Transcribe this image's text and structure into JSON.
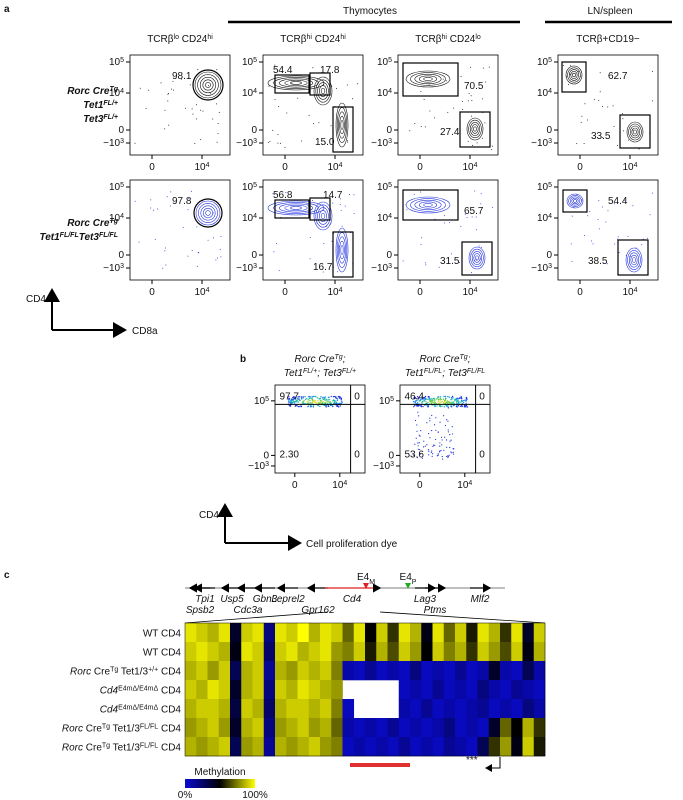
{
  "panel_a": {
    "letter": "a",
    "groups": [
      "Thymocytes",
      "LN/spleen"
    ],
    "columns": [
      [
        {
          "t": "TCRβ"
        },
        {
          "t": "lo",
          "sup": true
        },
        {
          "t": " CD24"
        },
        {
          "t": "hi",
          "sup": true
        }
      ],
      [
        {
          "t": "TCRβ"
        },
        {
          "t": "hi",
          "sup": true
        },
        {
          "t": " CD24"
        },
        {
          "t": "hi",
          "sup": true
        }
      ],
      [
        {
          "t": "TCRβ"
        },
        {
          "t": "hi",
          "sup": true
        },
        {
          "t": " CD24"
        },
        {
          "t": "lo",
          "sup": true
        }
      ],
      [
        {
          "t": "TCRβ+CD19−"
        }
      ]
    ],
    "rows": [
      {
        "label": [
          [
            {
              "t": "Rorc Cre"
            },
            {
              "t": "Tg",
              "sup": true
            }
          ],
          [
            {
              "t": "Tet1"
            },
            {
              "t": "FL/+",
              "sup": true
            }
          ],
          [
            {
              "t": "Tet3"
            },
            {
              "t": "FL/+",
              "sup": true
            }
          ]
        ],
        "gates": [
          [
            "98.1"
          ],
          [
            "54.4",
            "17.8",
            "15.0"
          ],
          [
            "70.5",
            "27.4"
          ],
          [
            "62.7",
            "33.5"
          ]
        ]
      },
      {
        "label": [
          [
            {
              "t": "Rorc Cre"
            },
            {
              "t": "Tg",
              "sup": true
            }
          ],
          [
            {
              "t": "Tet1"
            },
            {
              "t": "FL/FL",
              "sup": true
            },
            {
              "t": "Tet3"
            },
            {
              "t": "FL/FL",
              "sup": true
            }
          ]
        ],
        "gates": [
          [
            "97.8"
          ],
          [
            "56.8",
            "14.7",
            "16.7"
          ],
          [
            "65.7",
            "31.5"
          ],
          [
            "54.4",
            "38.5"
          ]
        ]
      }
    ],
    "y_axis": "CD4",
    "x_axis": "CD8a"
  },
  "axis_ticks": {
    "y": [
      [
        {
          "t": "10"
        },
        {
          "t": "5",
          "sup": true
        }
      ],
      [
        {
          "t": "10"
        },
        {
          "t": "4",
          "sup": true
        }
      ],
      [
        {
          "t": "0"
        }
      ],
      [
        {
          "t": "−10"
        },
        {
          "t": "3",
          "sup": true
        }
      ]
    ],
    "x": [
      [
        {
          "t": "0"
        }
      ],
      [
        {
          "t": "10"
        },
        {
          "t": "4",
          "sup": true
        }
      ]
    ]
  },
  "panel_b": {
    "letter": "b",
    "plots": [
      {
        "title": [
          [
            {
              "t": "Rorc Cre"
            },
            {
              "t": "Tg",
              "sup": true
            },
            {
              "t": ";"
            }
          ],
          [
            {
              "t": "Tet1"
            },
            {
              "t": "FL/+",
              "sup": true
            },
            {
              "t": "; Tet3"
            },
            {
              "t": "FL/+",
              "sup": true
            }
          ]
        ],
        "quadrants": [
          "97.7",
          "0",
          "2.30",
          "0"
        ]
      },
      {
        "title": [
          [
            {
              "t": "Rorc Cre"
            },
            {
              "t": "Tg",
              "sup": true
            },
            {
              "t": ";"
            }
          ],
          [
            {
              "t": "Tet1"
            },
            {
              "t": "FL/FL",
              "sup": true
            },
            {
              "t": "; Tet3"
            },
            {
              "t": "FL/FL",
              "sup": true
            }
          ]
        ],
        "quadrants": [
          "46.4",
          "0",
          "53.6",
          "0"
        ]
      }
    ],
    "y_axis": "CD4",
    "x_axis": "Cell proliferation dye"
  },
  "panel_c": {
    "letter": "c",
    "genes": [
      "Tpi1",
      "Spsb2",
      "Usp5",
      "Cdc3a",
      "Gbn3",
      "Leprel2",
      "Gpr162",
      "Cd4",
      "Lag3",
      "Ptms",
      "Mlf2"
    ],
    "enhancers": [
      [
        {
          "t": "E4"
        },
        {
          "t": "M",
          "sub": true
        }
      ],
      [
        {
          "t": "E4"
        },
        {
          "t": "P",
          "sub": true
        }
      ]
    ],
    "rows": [
      [
        {
          "t": "WT CD4"
        }
      ],
      [
        {
          "t": "WT CD4"
        }
      ],
      [
        {
          "t": "Rorc",
          "it": true
        },
        {
          "t": " Cre"
        },
        {
          "t": "Tg",
          "sup": true
        },
        {
          "t": " Tet1/3"
        },
        {
          "t": "+/+",
          "sup": true
        },
        {
          "t": " CD4"
        }
      ],
      [
        {
          "t": "Cd4",
          "it": true
        },
        {
          "t": "E4mΔ/E4mΔ",
          "sup": true
        },
        {
          "t": " CD4"
        }
      ],
      [
        {
          "t": "Cd4",
          "it": true
        },
        {
          "t": "E4mΔ/E4mΔ",
          "sup": true
        },
        {
          "t": " CD4"
        }
      ],
      [
        {
          "t": "Rorc",
          "it": true
        },
        {
          "t": " Cre"
        },
        {
          "t": "Tg",
          "sup": true
        },
        {
          "t": " Tet1/3"
        },
        {
          "t": "FL/FL",
          "sup": true
        },
        {
          "t": " CD4"
        }
      ],
      [
        {
          "t": "Rorc",
          "it": true
        },
        {
          "t": " Cre"
        },
        {
          "t": "Tg",
          "sup": true
        },
        {
          "t": " Tet1/3"
        },
        {
          "t": "FL/FL",
          "sup": true
        },
        {
          "t": " CD4"
        }
      ]
    ],
    "methylation": [
      [
        95,
        90,
        85,
        95,
        40,
        90,
        95,
        20,
        95,
        90,
        100,
        85,
        95,
        90,
        70,
        95,
        50,
        90,
        60,
        95,
        85,
        45,
        95,
        70,
        90,
        55,
        95,
        85,
        60,
        95,
        40,
        90
      ],
      [
        90,
        95,
        90,
        85,
        45,
        95,
        90,
        25,
        90,
        95,
        85,
        90,
        95,
        80,
        75,
        90,
        55,
        85,
        65,
        90,
        80,
        50,
        90,
        75,
        85,
        60,
        90,
        80,
        65,
        90,
        45,
        85
      ],
      [
        85,
        90,
        80,
        90,
        30,
        85,
        90,
        15,
        85,
        80,
        90,
        85,
        90,
        75,
        10,
        5,
        15,
        5,
        10,
        5,
        20,
        5,
        10,
        5,
        15,
        5,
        10,
        40,
        10,
        5,
        30,
        10
      ],
      [
        90,
        85,
        95,
        90,
        40,
        85,
        90,
        20,
        90,
        85,
        95,
        90,
        85,
        80,
        null,
        null,
        null,
        null,
        null,
        5,
        10,
        5,
        15,
        5,
        10,
        5,
        20,
        10,
        5,
        15,
        10,
        5
      ],
      [
        85,
        90,
        90,
        85,
        35,
        90,
        85,
        25,
        85,
        90,
        90,
        85,
        90,
        75,
        5,
        null,
        null,
        null,
        null,
        10,
        5,
        15,
        5,
        10,
        5,
        10,
        15,
        5,
        10,
        5,
        20,
        10
      ],
      [
        80,
        85,
        90,
        80,
        40,
        85,
        90,
        20,
        80,
        85,
        90,
        80,
        85,
        70,
        10,
        5,
        10,
        5,
        15,
        5,
        10,
        5,
        10,
        20,
        5,
        10,
        5,
        40,
        70,
        50,
        85,
        60
      ],
      [
        85,
        80,
        85,
        90,
        30,
        80,
        85,
        15,
        85,
        80,
        85,
        90,
        80,
        75,
        5,
        10,
        5,
        10,
        5,
        15,
        5,
        10,
        5,
        15,
        10,
        5,
        30,
        60,
        80,
        45,
        90,
        55
      ]
    ],
    "stars": "***",
    "legend": {
      "title": "Methylation",
      "min": "0%",
      "max": "100%"
    }
  }
}
